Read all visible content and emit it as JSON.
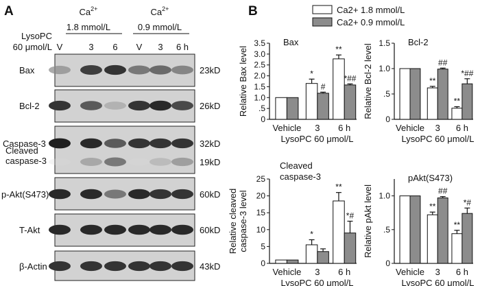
{
  "panels": {
    "a_label": "A",
    "b_label": "B"
  },
  "blot": {
    "groups": [
      {
        "ion": "Ca",
        "charge": "2+",
        "conc": "1.8 mmol/L"
      },
      {
        "ion": "Ca",
        "charge": "2+",
        "conc": "0.9 mmol/L"
      }
    ],
    "treatment_line1": "LysoPC",
    "treatment_line2": "60 μmol/L",
    "lanes": [
      "V",
      "3",
      "6",
      "V",
      "3",
      "6 h"
    ],
    "rows": [
      {
        "label": "Bax",
        "size": "23kD",
        "intensity": [
          0.45,
          0.8,
          0.85,
          0.6,
          0.65,
          0.55
        ]
      },
      {
        "label": "Bcl-2",
        "size": "26kD",
        "intensity": [
          0.85,
          0.7,
          0.35,
          0.85,
          0.9,
          0.75
        ]
      },
      {
        "label": "Caspase-3",
        "size": "32kD",
        "intensity": [
          0.95,
          0.9,
          0.7,
          0.85,
          0.85,
          0.85
        ]
      },
      {
        "label": "Cleaved caspase-3",
        "label_line1": "Cleaved",
        "label_line2": "caspase-3",
        "size": "19kD",
        "intensity": [
          0.05,
          0.4,
          0.6,
          0.05,
          0.3,
          0.45
        ]
      },
      {
        "label": "p-Akt(S473)",
        "size": "60kD",
        "intensity": [
          0.9,
          0.9,
          0.6,
          0.9,
          0.85,
          0.85
        ]
      },
      {
        "label": "T-Akt",
        "size": "60kD",
        "intensity": [
          0.9,
          0.9,
          0.9,
          0.9,
          0.9,
          0.9
        ]
      },
      {
        "label": "β-Actin",
        "size": "43kD",
        "intensity": [
          0.85,
          0.85,
          0.85,
          0.85,
          0.85,
          0.85
        ]
      }
    ]
  },
  "colors": {
    "bar_18": "#ffffff",
    "bar_09": "#8c8c8c",
    "axis": "#111111"
  },
  "chart_data": [
    {
      "type": "bar",
      "title": "Bax",
      "ylabel": "Relative Bax level",
      "xlabel": "LysoPC 60 μmol/L",
      "categories": [
        "Vehicle",
        "3",
        "6 h"
      ],
      "ylim": [
        0,
        3.5
      ],
      "yticks": [
        0,
        0.5,
        1.0,
        1.5,
        2.0,
        2.5,
        3.0,
        3.5
      ],
      "ytick_labels": [
        "0",
        ".5",
        "1.0",
        "1.5",
        "2.0",
        "2.5",
        "3.0",
        "3.5"
      ],
      "legend": [
        "Ca2+ 1.8 mmol/L",
        "Ca2+ 0.9 mmol/L"
      ],
      "series": [
        {
          "name": "Ca2+ 1.8 mmol/L",
          "values": [
            1.0,
            1.65,
            2.78
          ],
          "errors": [
            0,
            0.2,
            0.18
          ],
          "marks": [
            "",
            "*",
            "**"
          ]
        },
        {
          "name": "Ca2+ 0.9 mmol/L",
          "values": [
            1.0,
            1.2,
            1.58
          ],
          "errors": [
            0,
            0.05,
            0.05
          ],
          "marks": [
            "",
            "#",
            "*##"
          ]
        }
      ]
    },
    {
      "type": "bar",
      "title": "Bcl-2",
      "ylabel": "Relative Bcl-2 level",
      "xlabel": "LysoPC 60 μmol/L",
      "categories": [
        "Vehicle",
        "3",
        "6 h"
      ],
      "ylim": [
        0,
        1.5
      ],
      "yticks": [
        0,
        0.5,
        1.0,
        1.5
      ],
      "ytick_labels": [
        "0",
        ".5",
        "1.0",
        "1.5"
      ],
      "series": [
        {
          "name": "Ca2+ 1.8 mmol/L",
          "values": [
            1.0,
            0.62,
            0.22
          ],
          "errors": [
            0,
            0.03,
            0.03
          ],
          "marks": [
            "",
            "**",
            "**"
          ]
        },
        {
          "name": "Ca2+ 0.9 mmol/L",
          "values": [
            1.0,
            0.99,
            0.7
          ],
          "errors": [
            0,
            0.02,
            0.1
          ],
          "marks": [
            "",
            "##",
            "*##"
          ]
        }
      ]
    },
    {
      "type": "bar",
      "title_line1": "Cleaved",
      "title_line2": "caspase-3",
      "ylabel_line1": "Relative cleaved",
      "ylabel_line2": "caspase-3 level",
      "xlabel": "LysoPC 60 μmol/L",
      "categories": [
        "Vehicle",
        "3",
        "6 h"
      ],
      "ylim": [
        0,
        25
      ],
      "yticks": [
        0,
        5,
        10,
        15,
        20,
        25
      ],
      "ytick_labels": [
        "0",
        "5",
        "10",
        "15",
        "20",
        "25"
      ],
      "series": [
        {
          "name": "Ca2+ 1.8 mmol/L",
          "values": [
            1.0,
            5.5,
            18.5
          ],
          "errors": [
            0,
            1.5,
            2.5
          ],
          "marks": [
            "",
            "*",
            "**"
          ]
        },
        {
          "name": "Ca2+ 0.9 mmol/L",
          "values": [
            1.0,
            3.5,
            9.0
          ],
          "errors": [
            0,
            0.8,
            3.5
          ],
          "marks": [
            "",
            "",
            "*#"
          ]
        }
      ]
    },
    {
      "type": "bar",
      "title": "pAkt(S473)",
      "ylabel": "Relative pAkt level",
      "xlabel": "LysoPC 60 μmol/L",
      "categories": [
        "Vehicle",
        "3",
        "6 h"
      ],
      "ylim": [
        0,
        1.25
      ],
      "yticks": [
        0,
        0.5,
        1.0
      ],
      "ytick_labels": [
        "0",
        ".5",
        "1.0"
      ],
      "series": [
        {
          "name": "Ca2+ 1.8 mmol/L",
          "values": [
            1.0,
            0.72,
            0.44
          ],
          "errors": [
            0,
            0.04,
            0.05
          ],
          "marks": [
            "",
            "**",
            "**"
          ]
        },
        {
          "name": "Ca2+ 0.9 mmol/L",
          "values": [
            1.0,
            0.97,
            0.74
          ],
          "errors": [
            0,
            0.02,
            0.08
          ],
          "marks": [
            "",
            "##",
            "*#"
          ]
        }
      ]
    }
  ]
}
